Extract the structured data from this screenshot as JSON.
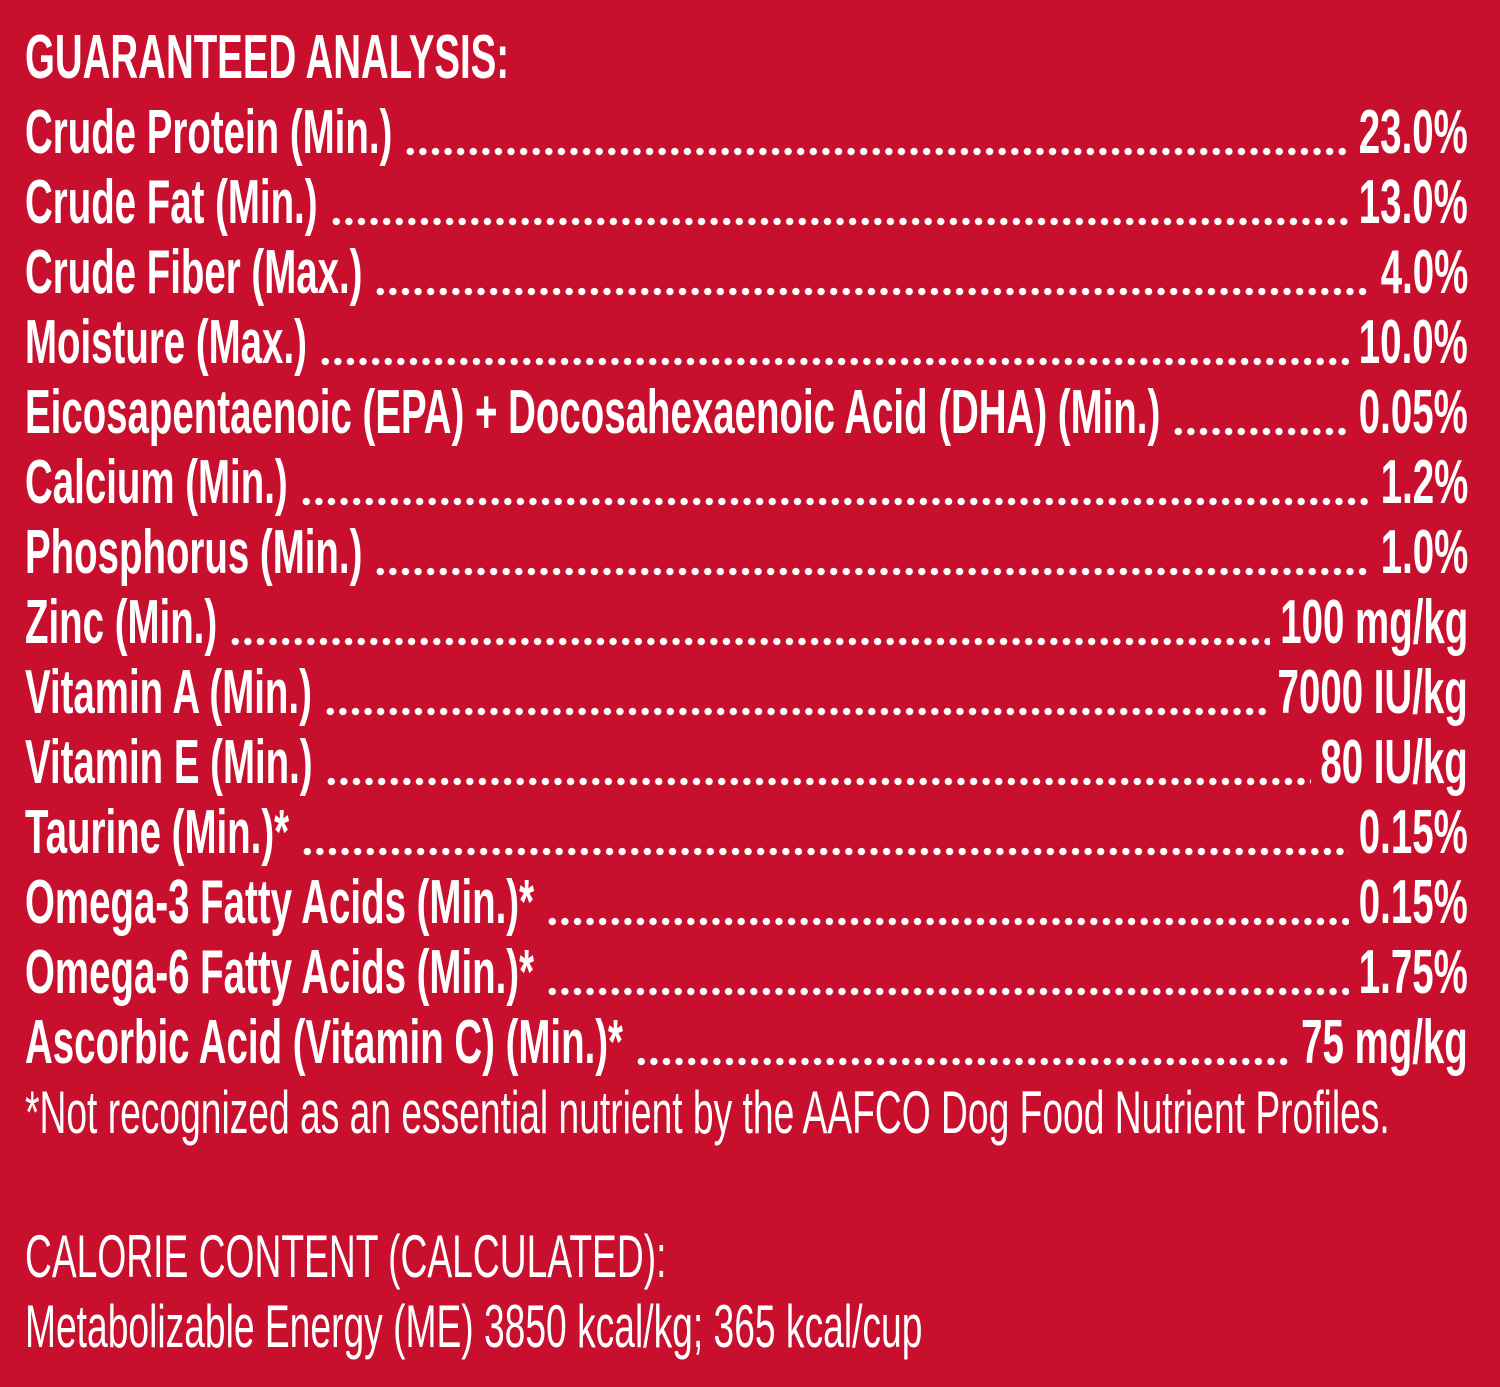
{
  "title": "GUARANTEED ANALYSIS:",
  "rows": [
    {
      "label": "Crude Protein (Min.)",
      "value": "23.0%"
    },
    {
      "label": "Crude Fat (Min.)",
      "value": "13.0%"
    },
    {
      "label": "Crude Fiber (Max.)",
      "value": "4.0%"
    },
    {
      "label": "Moisture (Max.)",
      "value": "10.0%"
    },
    {
      "label": "Eicosapentaenoic (EPA) + Docosahexaenoic Acid (DHA) (Min.)",
      "value": "0.05%"
    },
    {
      "label": "Calcium (Min.)",
      "value": "1.2%"
    },
    {
      "label": "Phosphorus (Min.)",
      "value": "1.0%"
    },
    {
      "label": "Zinc (Min.)",
      "value": "100 mg/kg"
    },
    {
      "label": "Vitamin A (Min.)",
      "value": "7000 IU/kg"
    },
    {
      "label": "Vitamin E (Min.)",
      "value": "80 IU/kg"
    },
    {
      "label": "Taurine (Min.)*",
      "value": "0.15%"
    },
    {
      "label": "Omega-3 Fatty Acids (Min.)*",
      "value": "0.15%"
    },
    {
      "label": "Omega-6 Fatty Acids (Min.)*",
      "value": "1.75%"
    },
    {
      "label": "Ascorbic Acid (Vitamin C) (Min.)*",
      "value": "75 mg/kg"
    }
  ],
  "footnote": "*Not recognized as an essential nutrient by the AAFCO Dog Food Nutrient Profiles.",
  "calorie": {
    "heading": "CALORIE CONTENT (CALCULATED):",
    "text": "Metabolizable Energy (ME) 3850 kcal/kg;  365 kcal/cup"
  }
}
